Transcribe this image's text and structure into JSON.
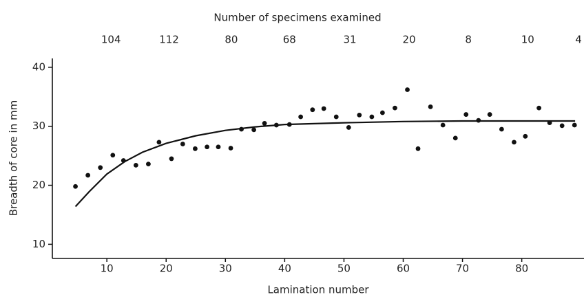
{
  "chart_data": {
    "type": "scatter",
    "title": "Number of specimens examined",
    "x_label": "Lamination number",
    "y_label": "Breadth of core in mm",
    "xlim": [
      0.8,
      90.5
    ],
    "ylim": [
      7.6,
      41.5
    ],
    "xticks": [
      10,
      20,
      30,
      40,
      50,
      60,
      70,
      80
    ],
    "yticks": [
      10,
      20,
      30,
      40
    ],
    "color": "#111",
    "x": [
      4.7,
      6.8,
      8.9,
      11.0,
      12.8,
      14.9,
      17.0,
      18.8,
      20.9,
      22.8,
      24.9,
      26.9,
      28.8,
      30.9,
      32.7,
      34.8,
      36.6,
      38.6,
      40.8,
      42.7,
      44.7,
      46.6,
      48.7,
      50.8,
      52.6,
      54.7,
      56.5,
      58.6,
      60.7,
      62.5,
      64.6,
      66.7,
      68.8,
      70.6,
      72.7,
      74.6,
      76.6,
      78.7,
      80.6,
      82.9,
      84.7,
      86.8,
      88.9
    ],
    "values": [
      19.8,
      21.7,
      23.0,
      25.1,
      24.2,
      23.4,
      23.6,
      27.3,
      24.5,
      27.0,
      26.2,
      26.5,
      26.5,
      26.3,
      29.5,
      29.4,
      30.5,
      30.2,
      30.3,
      31.6,
      32.8,
      33.0,
      31.6,
      29.8,
      31.9,
      31.6,
      32.3,
      33.1,
      36.2,
      26.2,
      33.3,
      30.2,
      28.0,
      32.0,
      31.0,
      32.0,
      29.5,
      27.3,
      28.3,
      33.1,
      30.6,
      30.1,
      30.2
    ],
    "curve": {
      "x": [
        4.7,
        7,
        10,
        13,
        16,
        20,
        25,
        30,
        35,
        40,
        50,
        60,
        70,
        80,
        89
      ],
      "values": [
        16.4,
        18.9,
        21.9,
        24.0,
        25.6,
        27.1,
        28.4,
        29.3,
        29.9,
        30.3,
        30.6,
        30.8,
        30.9,
        30.9,
        30.9
      ]
    },
    "specimens": {
      "x": [
        10.7,
        20.5,
        31.0,
        40.8,
        51.0,
        61.0,
        71.0,
        81.0,
        90.0
      ],
      "counts": [
        104,
        112,
        80,
        68,
        31,
        20,
        8,
        10,
        4
      ]
    }
  }
}
